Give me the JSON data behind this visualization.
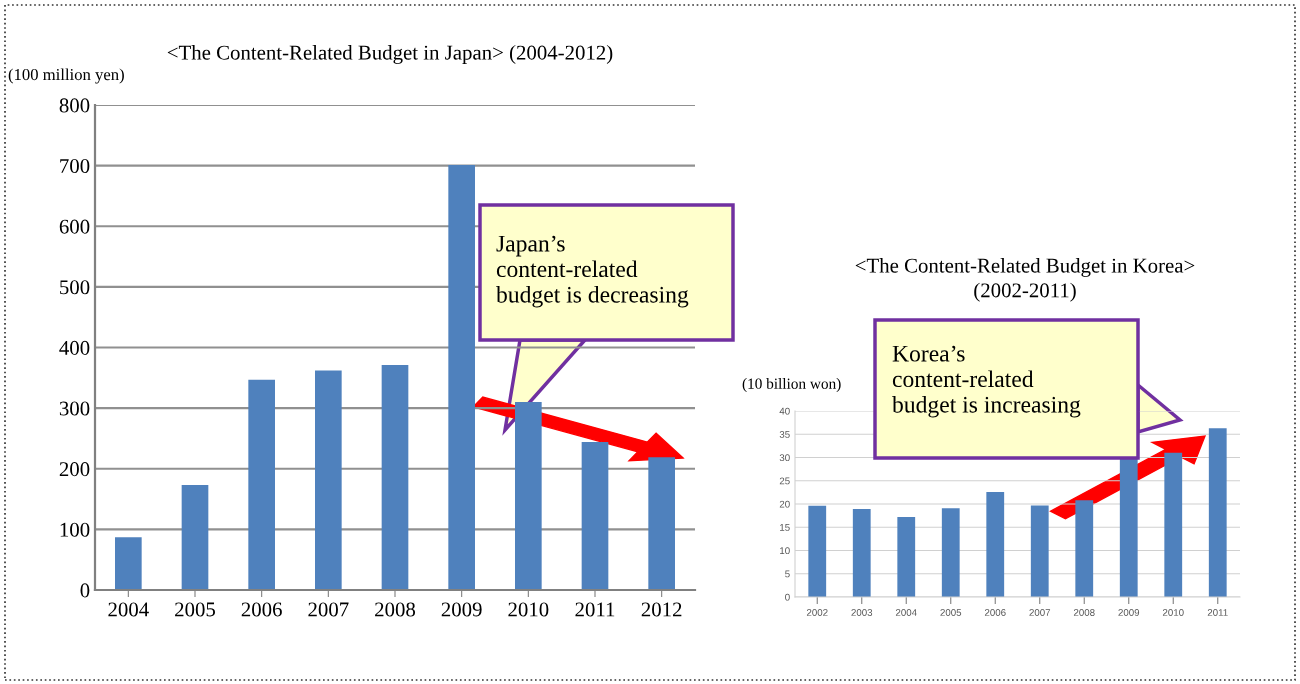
{
  "chart_data": [
    {
      "type": "bar",
      "title": "<The Content-Related Budget in Japan> (2004-2012)",
      "ylabel": "(100 million yen)",
      "categories": [
        "2004",
        "2005",
        "2006",
        "2007",
        "2008",
        "2009",
        "2010",
        "2011",
        "2012"
      ],
      "values": [
        87,
        173,
        347,
        362,
        371,
        701,
        310,
        244,
        219
      ],
      "color": "#4f81bd",
      "ylim": [
        0,
        800
      ],
      "yticks": [
        0,
        100,
        200,
        300,
        400,
        500,
        600,
        700,
        800
      ],
      "grid": "y",
      "annotations": [
        "Japan’s\ncontent-related\nbudget is decreasing"
      ]
    },
    {
      "type": "bar",
      "title": "<The Content-Related Budget in Korea>\n(2002-2011)",
      "ylabel": "(10 billion won)",
      "categories": [
        "2002",
        "2003",
        "2004",
        "2005",
        "2006",
        "2007",
        "2008",
        "2009",
        "2010",
        "2011"
      ],
      "values": [
        19.6,
        18.9,
        17.2,
        19.1,
        22.6,
        19.7,
        20.8,
        29.7,
        31,
        36.3
      ],
      "color": "#4f81bd",
      "ylim": [
        0,
        40
      ],
      "yticks": [
        0,
        5,
        10,
        15,
        20,
        25,
        30,
        35,
        40
      ],
      "grid": "y",
      "annotations": [
        "Korea’s\ncontent-related\nbudget is increasing"
      ]
    }
  ]
}
